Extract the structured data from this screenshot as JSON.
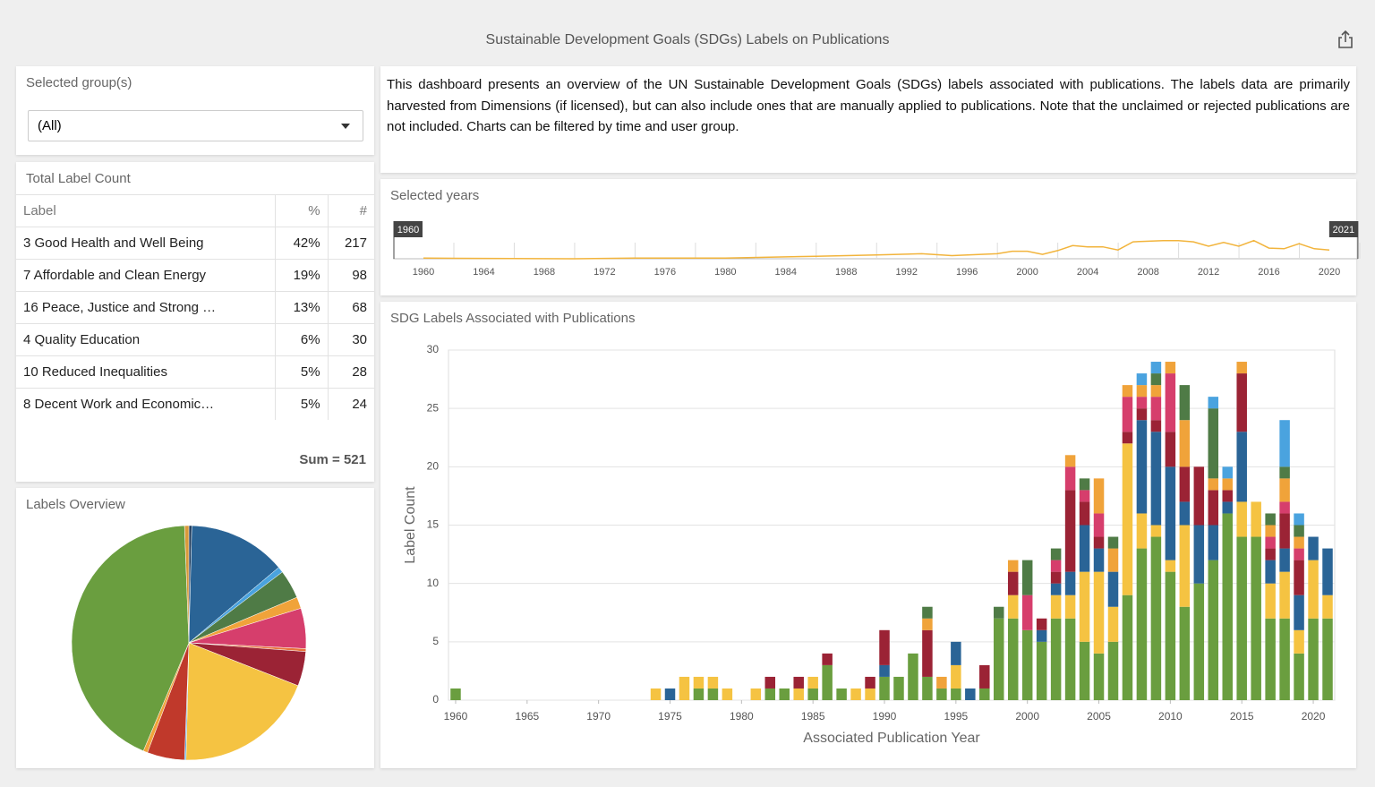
{
  "header": {
    "title": "Sustainable Development Goals (SDGs) Labels on Publications"
  },
  "group_filter": {
    "label": "Selected group(s)",
    "value": "(All)"
  },
  "description": "This dashboard presents an overview of the UN Sustainable Development Goals (SDGs) labels associated with publications. The labels data are primarily harvested from Dimensions (if licensed), but can also include ones that are manually applied to publications. Note that the unclaimed or rejected publications are not included. Charts can be filtered by time and user group.",
  "label_table": {
    "title": "Total Label Count",
    "columns": [
      "Label",
      "%",
      "#"
    ],
    "rows": [
      [
        "3 Good Health and Well Being",
        "42%",
        217
      ],
      [
        "7 Affordable and Clean Energy",
        "19%",
        98
      ],
      [
        "16 Peace, Justice and Strong …",
        "13%",
        68
      ],
      [
        "4 Quality Education",
        "6%",
        30
      ],
      [
        "10 Reduced Inequalities",
        "5%",
        28
      ],
      [
        "8 Decent Work and Economic…",
        "5%",
        24
      ]
    ],
    "sum": "Sum = 521"
  },
  "chart_data": [
    {
      "type": "line",
      "title": "Selected years",
      "color": "#f2b43c",
      "x": [
        1960,
        1970,
        1974,
        1980,
        1986,
        1990,
        1993,
        1995,
        1998,
        1999,
        2000,
        2001,
        2002,
        2003,
        2004,
        2005,
        2006,
        2007,
        2009,
        2010,
        2011,
        2012,
        2013,
        2014,
        2015,
        2016,
        2017,
        2018,
        2019,
        2020
      ],
      "values": [
        1,
        0,
        1,
        1,
        4,
        6,
        8,
        5,
        8,
        12,
        12,
        7,
        13,
        21,
        19,
        19,
        14,
        27,
        29,
        29,
        27,
        20,
        26,
        20,
        29,
        17,
        16,
        24,
        16,
        14
      ],
      "xlim": [
        1958,
        2021.9
      ],
      "ylim": [
        0,
        40
      ],
      "xticks": [
        1960,
        1964,
        1968,
        1972,
        1976,
        1980,
        1984,
        1988,
        1992,
        1996,
        2000,
        2004,
        2008,
        2012,
        2016,
        2020
      ],
      "range": [
        1960,
        2021
      ]
    },
    {
      "type": "bar",
      "title": "SDG Labels Associated with Publications",
      "xlabel": "Associated Publication Year",
      "ylabel": "Label Count",
      "stacked": true,
      "grid": true,
      "xlim": [
        1959.5,
        2021.5
      ],
      "ylim": [
        0,
        30
      ],
      "xticks": [
        1960,
        1965,
        1970,
        1975,
        1980,
        1985,
        1990,
        1995,
        2000,
        2005,
        2010,
        2015,
        2020
      ],
      "yticks": [
        0,
        5,
        10,
        15,
        20,
        25,
        30
      ],
      "x": [
        1960,
        1974,
        1975,
        1976,
        1977,
        1978,
        1979,
        1981,
        1982,
        1983,
        1984,
        1985,
        1986,
        1987,
        1988,
        1989,
        1990,
        1991,
        1992,
        1993,
        1994,
        1995,
        1996,
        1997,
        1998,
        1999,
        2000,
        2001,
        2002,
        2003,
        2004,
        2005,
        2006,
        2007,
        2008,
        2009,
        2010,
        2011,
        2012,
        2013,
        2014,
        2015,
        2016,
        2017,
        2018,
        2019,
        2020,
        2021
      ],
      "series": [
        {
          "color": "#6a9e3f",
          "values": [
            1,
            0,
            0,
            0,
            1,
            1,
            0,
            0,
            1,
            1,
            0,
            1,
            3,
            1,
            0,
            0,
            2,
            2,
            4,
            2,
            1,
            1,
            0,
            1,
            7,
            7,
            6,
            5,
            7,
            7,
            5,
            4,
            5,
            9,
            13,
            14,
            11,
            8,
            10,
            12,
            16,
            14,
            14,
            7,
            7,
            4,
            7,
            7
          ]
        },
        {
          "color": "#f5c342",
          "values": [
            0,
            1,
            0,
            2,
            1,
            1,
            1,
            1,
            0,
            0,
            1,
            1,
            0,
            0,
            1,
            1,
            0,
            0,
            0,
            0,
            0,
            2,
            0,
            0,
            0,
            2,
            0,
            0,
            2,
            2,
            6,
            7,
            3,
            13,
            3,
            1,
            1,
            7,
            0,
            0,
            0,
            3,
            3,
            3,
            4,
            2,
            5,
            2
          ]
        },
        {
          "color": "#2a6496",
          "values": [
            0,
            0,
            1,
            0,
            0,
            0,
            0,
            0,
            0,
            0,
            0,
            0,
            0,
            0,
            0,
            0,
            1,
            0,
            0,
            0,
            0,
            2,
            1,
            0,
            0,
            0,
            0,
            1,
            1,
            2,
            4,
            2,
            3,
            0,
            8,
            8,
            8,
            2,
            5,
            3,
            1,
            6,
            0,
            2,
            2,
            3,
            2,
            4
          ]
        },
        {
          "color": "#9b2335",
          "values": [
            0,
            0,
            0,
            0,
            0,
            0,
            0,
            0,
            1,
            0,
            1,
            0,
            1,
            0,
            0,
            1,
            3,
            0,
            0,
            4,
            0,
            0,
            0,
            2,
            0,
            2,
            0,
            1,
            1,
            7,
            2,
            1,
            0,
            1,
            1,
            1,
            3,
            3,
            5,
            3,
            1,
            5,
            0,
            1,
            3,
            3,
            0,
            0
          ]
        },
        {
          "color": "#d63e6c",
          "values": [
            0,
            0,
            0,
            0,
            0,
            0,
            0,
            0,
            0,
            0,
            0,
            0,
            0,
            0,
            0,
            0,
            0,
            0,
            0,
            0,
            0,
            0,
            0,
            0,
            0,
            0,
            3,
            0,
            1,
            2,
            1,
            2,
            0,
            3,
            1,
            2,
            5,
            0,
            0,
            0,
            0,
            0,
            0,
            1,
            1,
            1,
            0,
            0
          ]
        },
        {
          "color": "#f0a33a",
          "values": [
            0,
            0,
            0,
            0,
            0,
            0,
            0,
            0,
            0,
            0,
            0,
            0,
            0,
            0,
            0,
            0,
            0,
            0,
            0,
            1,
            1,
            0,
            0,
            0,
            0,
            1,
            0,
            0,
            0,
            1,
            0,
            3,
            2,
            1,
            1,
            1,
            1,
            4,
            0,
            1,
            1,
            1,
            0,
            1,
            2,
            1,
            0,
            0
          ]
        },
        {
          "color": "#4f7b46",
          "values": [
            0,
            0,
            0,
            0,
            0,
            0,
            0,
            0,
            0,
            0,
            0,
            0,
            0,
            0,
            0,
            0,
            0,
            0,
            0,
            1,
            0,
            0,
            0,
            0,
            1,
            0,
            3,
            0,
            1,
            0,
            1,
            0,
            1,
            0,
            0,
            1,
            0,
            3,
            0,
            6,
            0,
            0,
            0,
            1,
            1,
            1,
            0,
            0
          ]
        },
        {
          "color": "#4aa3df",
          "values": [
            0,
            0,
            0,
            0,
            0,
            0,
            0,
            0,
            0,
            0,
            0,
            0,
            0,
            0,
            0,
            0,
            0,
            0,
            0,
            0,
            0,
            0,
            0,
            0,
            0,
            0,
            0,
            0,
            0,
            0,
            0,
            0,
            0,
            0,
            1,
            1,
            0,
            0,
            0,
            1,
            1,
            0,
            0,
            0,
            4,
            1,
            0,
            0
          ]
        }
      ]
    },
    {
      "type": "pie",
      "title": "Labels Overview",
      "values": [
        2,
        68,
        4,
        20,
        8,
        28,
        2,
        24,
        98,
        1,
        26,
        3,
        217,
        3
      ],
      "colors": [
        "#1f3b5c",
        "#2a6496",
        "#4aa3df",
        "#4f7b46",
        "#f0a33a",
        "#d63e6c",
        "#e8743b",
        "#9b2335",
        "#f5c342",
        "#4aa3df",
        "#c0392b",
        "#f0a33a",
        "#6a9e3f",
        "#d99a3a"
      ]
    }
  ]
}
